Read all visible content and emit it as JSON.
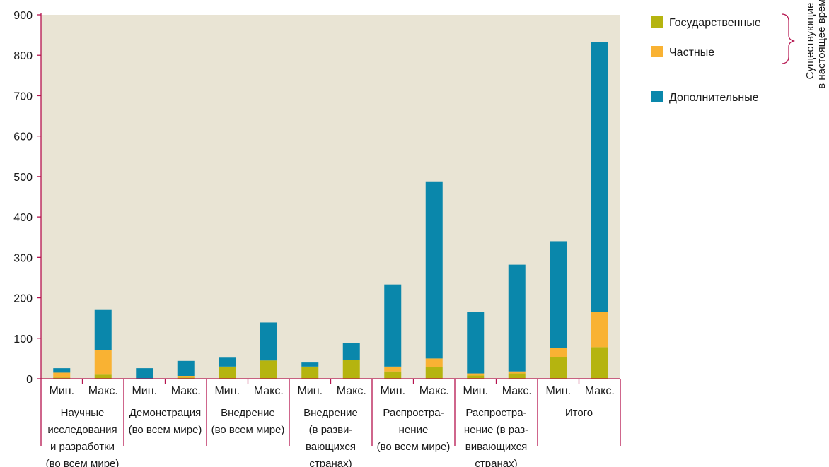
{
  "chart_data": {
    "type": "bar",
    "stacked": true,
    "ylim": [
      0,
      900
    ],
    "yticks": [
      0,
      100,
      200,
      300,
      400,
      500,
      600,
      700,
      800,
      900
    ],
    "colors": {
      "plot_background": "#e9e4d4",
      "axis": "#b5134e",
      "government": "#b5b40f",
      "private": "#f9b233",
      "additional": "#0a87ab"
    },
    "groups": [
      {
        "label": [
          "Научные",
          "исследования",
          "и разработки",
          "(во всем мире)"
        ],
        "bars": [
          {
            "label": "Мин.",
            "government": 3,
            "private": 12,
            "additional": 11
          },
          {
            "label": "Макс.",
            "government": 10,
            "private": 60,
            "additional": 100
          }
        ]
      },
      {
        "label": [
          "Демонстрация",
          "(во всем мире)"
        ],
        "bars": [
          {
            "label": "Мин.",
            "government": 0,
            "private": 0,
            "additional": 26
          },
          {
            "label": "Макс.",
            "government": 3,
            "private": 4,
            "additional": 37
          }
        ]
      },
      {
        "label": [
          "Внедрение",
          "(во всем мире)"
        ],
        "bars": [
          {
            "label": "Мин.",
            "government": 30,
            "private": 0,
            "additional": 22
          },
          {
            "label": "Макс.",
            "government": 45,
            "private": 0,
            "additional": 94
          }
        ]
      },
      {
        "label": [
          "Внедрение",
          "(в разви-",
          "вающихся",
          "странах)"
        ],
        "bars": [
          {
            "label": "Мин.",
            "government": 30,
            "private": 0,
            "additional": 10
          },
          {
            "label": "Макс.",
            "government": 47,
            "private": 0,
            "additional": 42
          }
        ]
      },
      {
        "label": [
          "Распростра-",
          "нение",
          "(во всем мире)"
        ],
        "bars": [
          {
            "label": "Мин.",
            "government": 18,
            "private": 12,
            "additional": 203
          },
          {
            "label": "Макс.",
            "government": 28,
            "private": 22,
            "additional": 438
          }
        ]
      },
      {
        "label": [
          "Распростра-",
          "нение (в раз-",
          "вивающихся",
          "странах)"
        ],
        "bars": [
          {
            "label": "Мин.",
            "government": 8,
            "private": 5,
            "additional": 152
          },
          {
            "label": "Макс.",
            "government": 13,
            "private": 5,
            "additional": 264
          }
        ]
      },
      {
        "label": [
          "Итого"
        ],
        "bars": [
          {
            "label": "Мин.",
            "government": 53,
            "private": 23,
            "additional": 264
          },
          {
            "label": "Макс.",
            "government": 78,
            "private": 87,
            "additional": 668
          }
        ]
      }
    ],
    "legend": {
      "placement": "top-right",
      "items": [
        {
          "key": "government",
          "name": "Государственные"
        },
        {
          "key": "private",
          "name": "Частные"
        },
        {
          "key": "additional",
          "name": "Дополнительные"
        }
      ],
      "brace_label": [
        "Существующие",
        "в настоящее время"
      ]
    }
  }
}
